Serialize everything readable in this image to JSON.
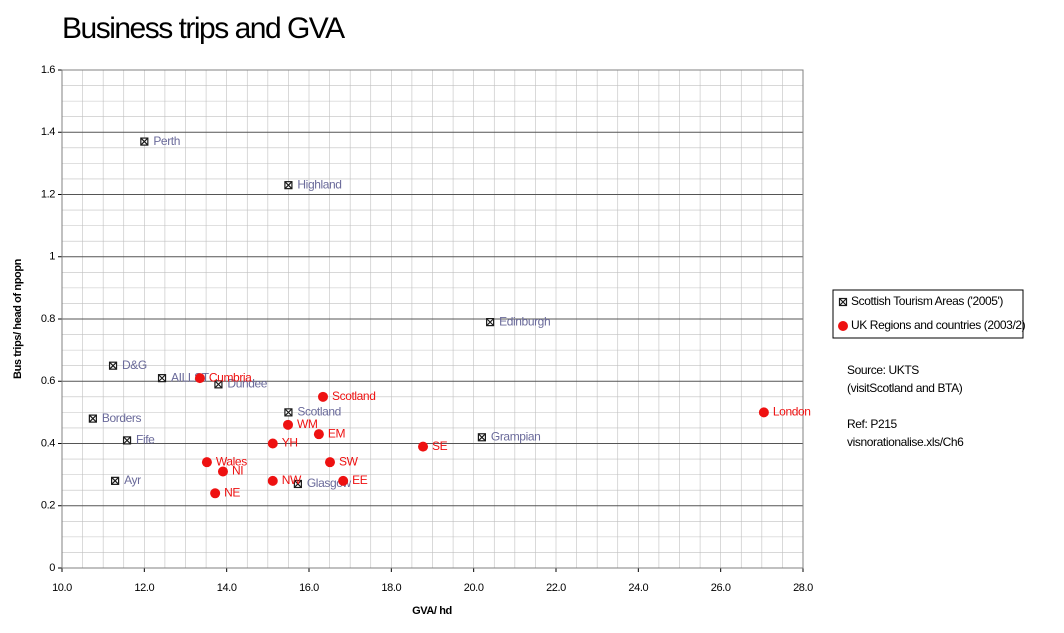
{
  "chart_data": {
    "type": "scatter",
    "title": "Business trips and GVA",
    "x_label": "GVA/ hd",
    "y_label": "Bus trips/ head of npopn",
    "xlim": [
      10,
      28
    ],
    "ylim": [
      0,
      1.6
    ],
    "xticks": [
      {
        "value": 10,
        "label": "10.0"
      },
      {
        "value": 12,
        "label": "12.0"
      },
      {
        "value": 14,
        "label": "14.0"
      },
      {
        "value": 16,
        "label": "16.0"
      },
      {
        "value": 18,
        "label": "18.0"
      },
      {
        "value": 20,
        "label": "20.0"
      },
      {
        "value": 22,
        "label": "22.0"
      },
      {
        "value": 24,
        "label": "24.0"
      },
      {
        "value": 26,
        "label": "26.0"
      },
      {
        "value": 28,
        "label": "28.0"
      }
    ],
    "yticks": [
      0,
      0.2,
      0.4,
      0.6,
      0.8,
      1,
      1.2,
      1.4,
      1.6
    ],
    "grid": true,
    "minor_grid": true,
    "legend": "right",
    "series": [
      {
        "name": "Scottish Tourism Areas ('2005')",
        "color": "#1a1a1a",
        "label_color": "#6a6a9a",
        "marker": "square-x",
        "labels": [
          "Perth",
          "Highland",
          "Edinburgh",
          "D&G",
          "AILLST",
          "Dundee",
          "Scotland",
          "Borders",
          "Fife",
          "Grampian",
          "Ayr",
          "Glasgow"
        ],
        "x": [
          12.0,
          15.5,
          20.4,
          11.24,
          12.43,
          13.8,
          15.5,
          10.75,
          11.58,
          20.2,
          11.29,
          15.73
        ],
        "values": [
          1.37,
          1.23,
          0.79,
          0.65,
          0.61,
          0.59,
          0.5,
          0.48,
          0.41,
          0.42,
          0.28,
          0.27
        ]
      },
      {
        "name": "UK Regions and countries (2003/2)",
        "color": "#ee1111",
        "label_color": "#ee1111",
        "marker": "circle",
        "labels": [
          "Cumbria",
          "Scotland",
          "WM",
          "EM",
          "YH",
          "SE",
          "London",
          "Wales",
          "SW",
          "NI",
          "NW",
          "EE",
          "NE"
        ],
        "x": [
          13.35,
          16.34,
          15.49,
          16.24,
          15.12,
          18.77,
          27.05,
          13.52,
          16.51,
          13.91,
          15.12,
          16.83,
          13.72
        ],
        "values": [
          0.61,
          0.55,
          0.46,
          0.43,
          0.4,
          0.39,
          0.5,
          0.34,
          0.34,
          0.31,
          0.28,
          0.28,
          0.24
        ]
      }
    ],
    "annotations": [
      "Source: UKTS",
      "(visitScotland and BTA)",
      "Ref:  P215",
      "visnorationalise.xls/Ch6"
    ]
  }
}
